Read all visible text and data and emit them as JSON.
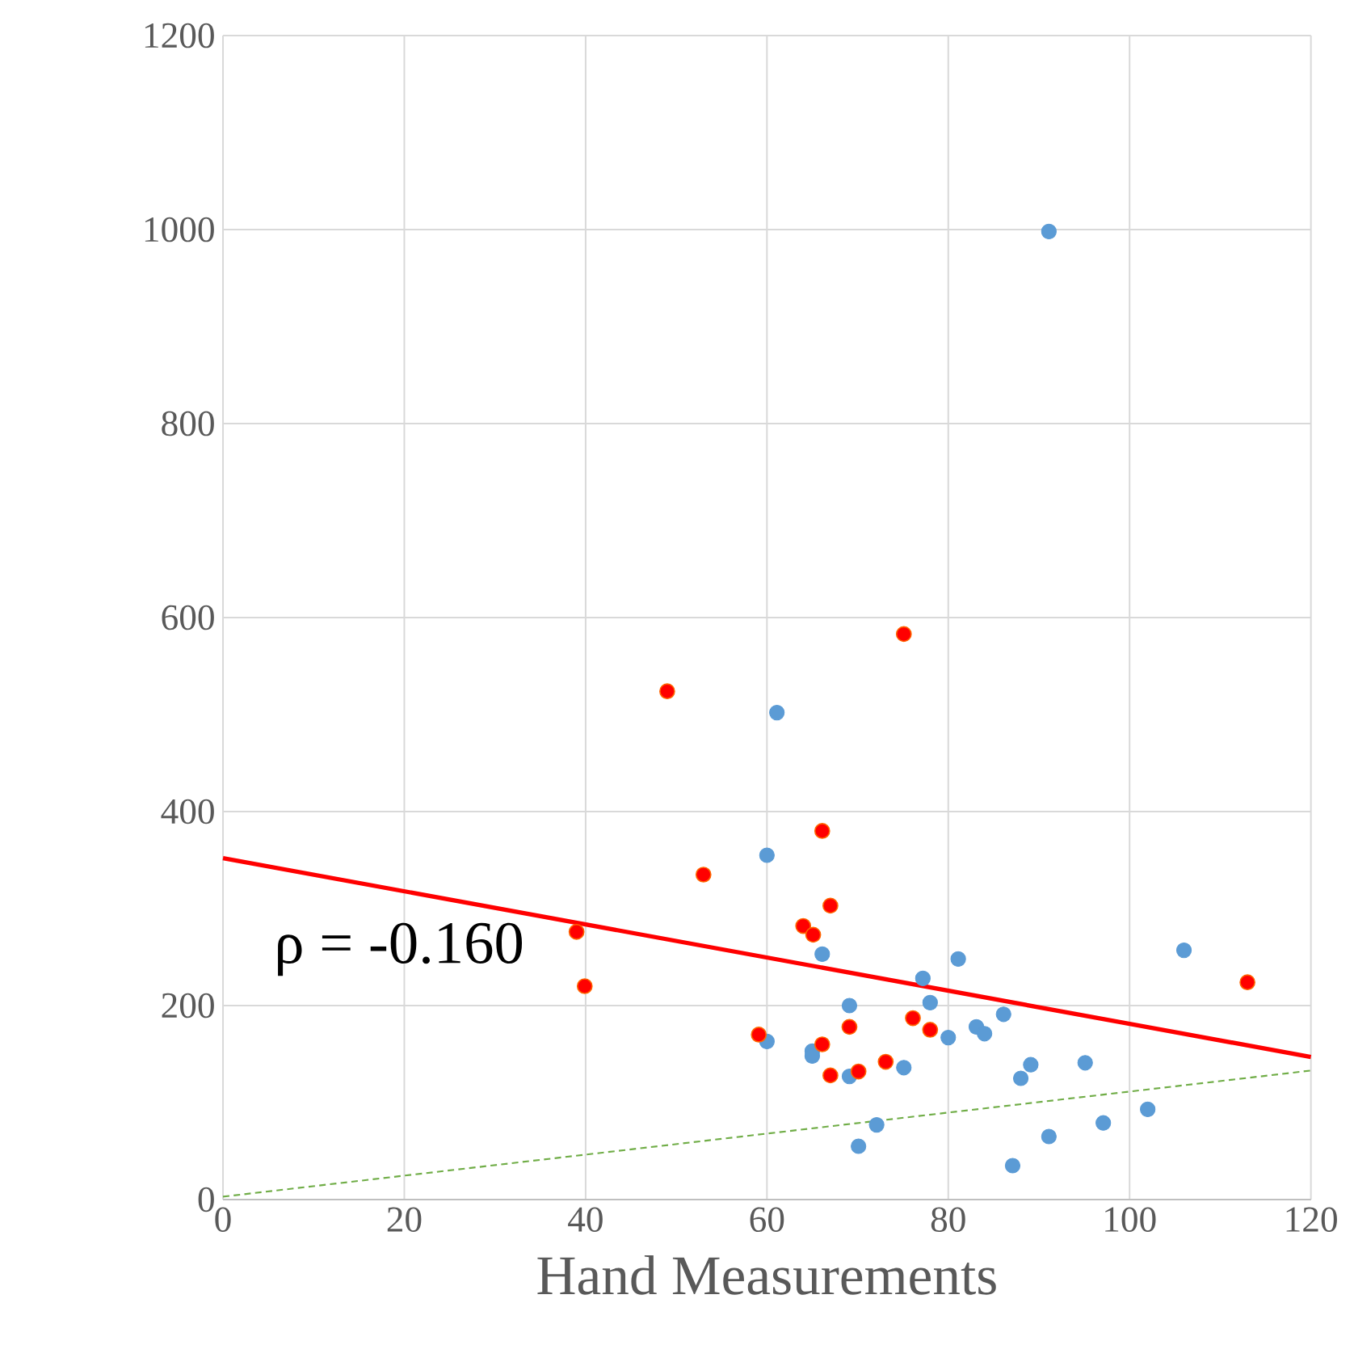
{
  "chart_data": {
    "type": "scatter",
    "xlabel": "Hand Measurements",
    "xlim": [
      0,
      120
    ],
    "xticks": [
      0,
      20,
      40,
      60,
      80,
      100,
      120
    ],
    "ylim": [
      0,
      1200
    ],
    "yticks": [
      0,
      200,
      400,
      600,
      800,
      1000,
      1200
    ],
    "grid": true,
    "marker": "circle",
    "annotations": [
      "ρ = -0.160"
    ],
    "series": [
      {
        "type": "line",
        "color": "#70ad47",
        "line_style": "dashed",
        "marker": "none",
        "x": [
          0,
          120
        ],
        "values": [
          3,
          133
        ]
      },
      {
        "color": "#5b9bd5",
        "x": [
          91.1,
          61.1,
          60.0,
          66.1,
          77.2,
          78.0,
          69.1,
          60.0,
          65.0,
          65.0,
          69.1,
          75.1,
          72.1,
          70.1,
          81.1,
          80.0,
          83.1,
          84.0,
          86.1,
          89.1,
          88.0,
          95.1,
          87.1,
          91.1,
          97.1,
          102,
          106
        ],
        "values": [
          998,
          502,
          355,
          253,
          228,
          203,
          200,
          163,
          153,
          148,
          127,
          136,
          77,
          55,
          248,
          167,
          178,
          171,
          191,
          139,
          125,
          141,
          35,
          65,
          79,
          93,
          257
        ]
      },
      {
        "color": "#ff0000",
        "x": [
          39.0,
          39.9,
          49.0,
          53.0,
          66.1,
          67.0,
          64.0,
          65.1,
          59.1,
          66.1,
          69.1,
          67.0,
          70.1,
          73.1,
          76.1,
          78.0,
          75.1,
          113
        ],
        "values": [
          276,
          220,
          524,
          335,
          380,
          303,
          282,
          273,
          170,
          160,
          178,
          128,
          132,
          142,
          187,
          175,
          583,
          224
        ]
      },
      {
        "type": "line",
        "color": "#ff0000",
        "line_style": "solid",
        "marker": "none",
        "x": [
          0,
          120
        ],
        "values": [
          352,
          147
        ]
      }
    ]
  }
}
